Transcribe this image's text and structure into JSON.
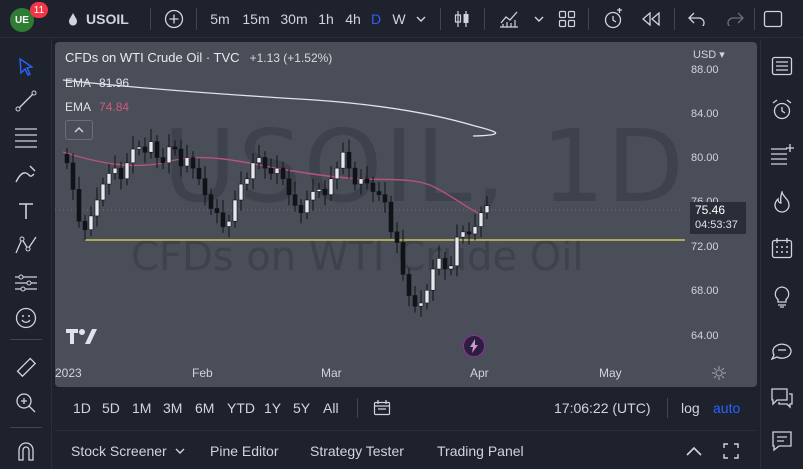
{
  "toolbar": {
    "badge_count": "11",
    "symbol": "USOIL",
    "intervals": [
      "5m",
      "15m",
      "30m",
      "1h",
      "4h",
      "D",
      "W"
    ],
    "active_interval": "D"
  },
  "chart": {
    "legend_title": "CFDs on WTI Crude Oil · TVC",
    "change": "+1.13 (+1.52%)",
    "ema1_label": "EMA",
    "ema1_value": "81.96",
    "ema1_color": "#e0e3eb",
    "ema2_label": "EMA",
    "ema2_value": "74.84",
    "ema2_color": "#d05a7a",
    "watermark_symbol": "USOIL, 1D",
    "watermark_name": "CFDs on WTI Crude Oil",
    "currency": "USD",
    "y_ticks": [
      "88.00",
      "84.00",
      "80.00",
      "76.00",
      "72.00",
      "68.00",
      "64.00"
    ],
    "x_ticks": [
      "2023",
      "Feb",
      "Mar",
      "Apr",
      "May"
    ],
    "price_label": "75.46",
    "countdown": "04:53:37",
    "support_color": "#e8e157"
  },
  "chart_data": {
    "type": "candlestick",
    "y_range": [
      63,
      89
    ],
    "x_categories": [
      "2023",
      "Feb",
      "Mar",
      "Apr",
      "May"
    ],
    "last_close": 75.46,
    "support_level": 72.8,
    "ema_series": [
      {
        "name": "EMA",
        "value": 81.96
      },
      {
        "name": "EMA",
        "value": 74.84
      }
    ]
  },
  "periods": {
    "items": [
      "1D",
      "5D",
      "1M",
      "3M",
      "6M",
      "YTD",
      "1Y",
      "5Y",
      "All"
    ],
    "time": "17:06:22 (UTC)",
    "log": "log",
    "auto": "auto"
  },
  "footer": {
    "items": [
      "Stock Screener",
      "Pine Editor",
      "Strategy Tester",
      "Trading Panel"
    ]
  }
}
